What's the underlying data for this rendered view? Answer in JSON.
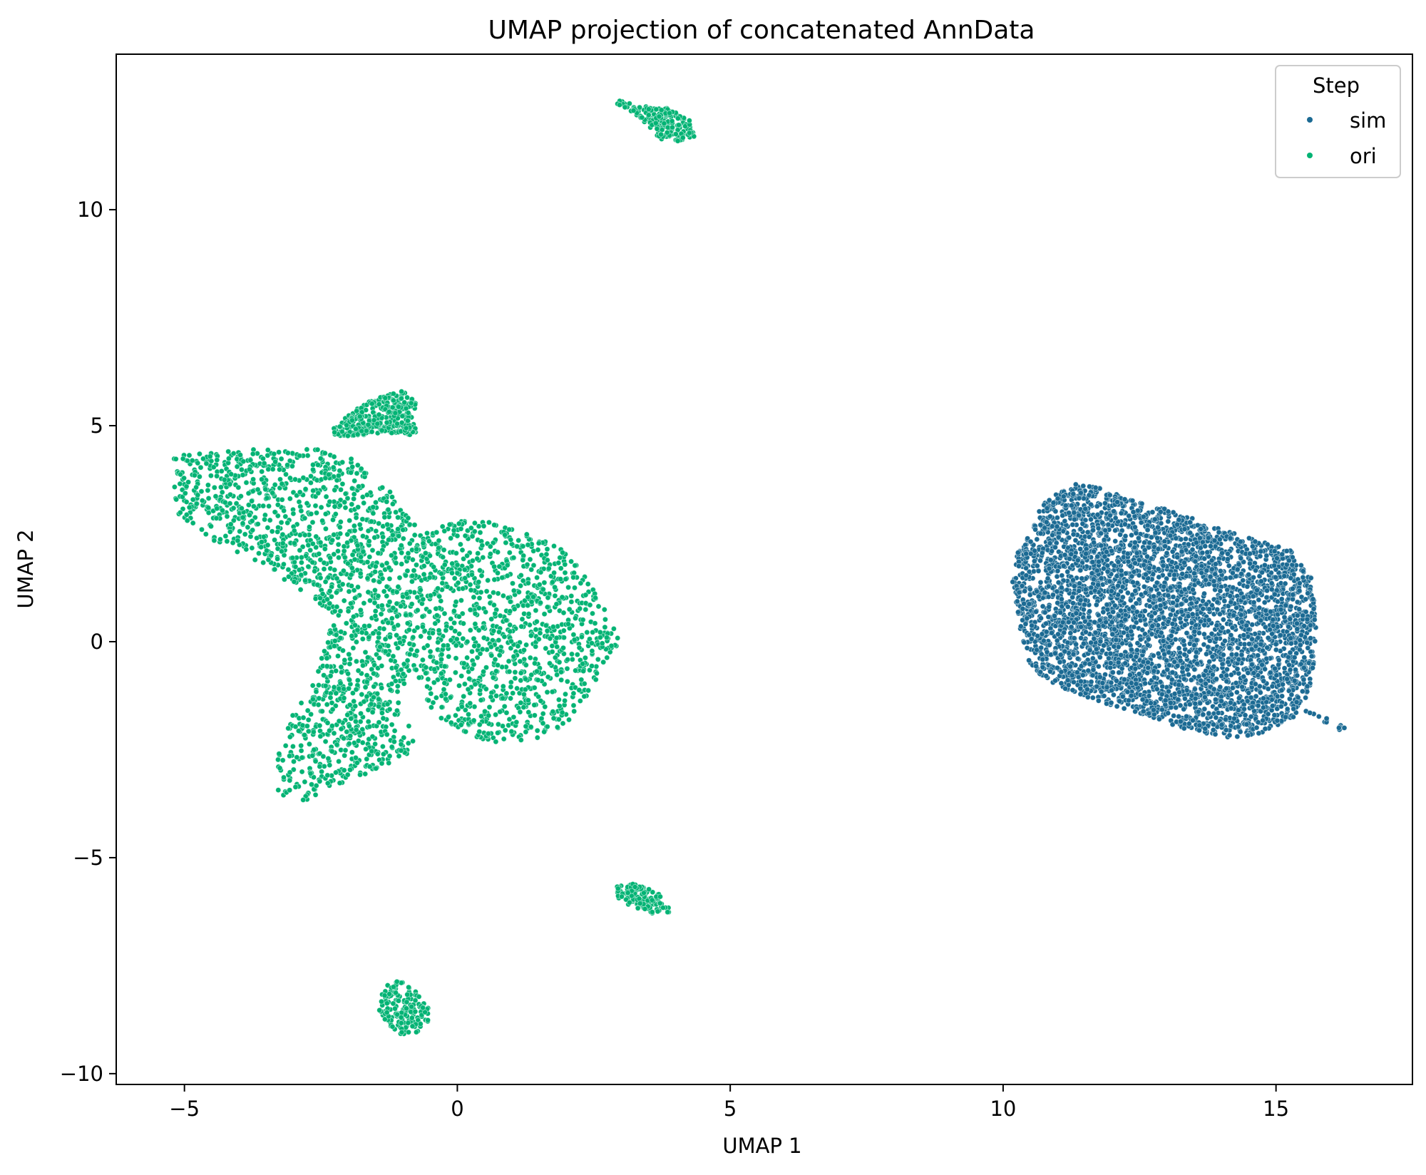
{
  "chart_data": {
    "type": "scatter",
    "title": "UMAP projection of concatenated AnnData",
    "xlabel": "UMAP 1",
    "ylabel": "UMAP 2",
    "xlim": [
      -6.25,
      17.5
    ],
    "ylim": [
      -10.25,
      13.6
    ],
    "xticks": [
      -5,
      0,
      5,
      10,
      15
    ],
    "yticks": [
      -10,
      -5,
      0,
      5,
      10
    ],
    "xtick_labels": [
      "−5",
      "0",
      "5",
      "10",
      "15"
    ],
    "ytick_labels": [
      "−10",
      "−5",
      "0",
      "5",
      "10"
    ],
    "grid": false,
    "legend": {
      "title": "Step",
      "placement": "top-right"
    },
    "series": [
      {
        "name": "sim",
        "color": "#1b6a93",
        "clusters": [
          {
            "polygon": [
              [
                10.2,
                1.9
              ],
              [
                10.5,
                2.6
              ],
              [
                10.75,
                3.25
              ],
              [
                11.3,
                3.65
              ],
              [
                11.8,
                3.55
              ],
              [
                12.4,
                3.25
              ],
              [
                13.2,
                3.0
              ],
              [
                14.0,
                2.6
              ],
              [
                14.8,
                2.3
              ],
              [
                15.4,
                2.05
              ],
              [
                15.65,
                1.5
              ],
              [
                15.75,
                0.3
              ],
              [
                15.65,
                -1.0
              ],
              [
                15.4,
                -1.7
              ],
              [
                14.9,
                -2.05
              ],
              [
                14.3,
                -2.25
              ],
              [
                13.5,
                -2.1
              ],
              [
                12.7,
                -1.75
              ],
              [
                11.8,
                -1.4
              ],
              [
                11.0,
                -1.05
              ],
              [
                10.5,
                -0.6
              ],
              [
                10.3,
                0.3
              ],
              [
                10.15,
                1.2
              ]
            ],
            "n": 4200
          },
          {
            "polygon": [
              [
                15.55,
                -1.5
              ],
              [
                16.45,
                -2.1
              ],
              [
                16.4,
                -2.2
              ],
              [
                15.5,
                -1.6
              ]
            ],
            "n": 14
          }
        ]
      },
      {
        "name": "ori",
        "color": "#03b374",
        "clusters": [
          {
            "polygon": [
              [
                -5.2,
                4.3
              ],
              [
                -4.8,
                4.45
              ],
              [
                -3.5,
                4.45
              ],
              [
                -2.4,
                4.45
              ],
              [
                -2.0,
                4.3
              ],
              [
                -1.4,
                3.7
              ],
              [
                -1.05,
                3.3
              ],
              [
                -0.9,
                2.9
              ],
              [
                -0.7,
                2.6
              ],
              [
                -0.35,
                2.65
              ],
              [
                0.0,
                2.8
              ],
              [
                0.5,
                2.8
              ],
              [
                1.3,
                2.5
              ],
              [
                1.9,
                2.2
              ],
              [
                2.3,
                1.6
              ],
              [
                2.6,
                1.0
              ],
              [
                2.85,
                0.4
              ],
              [
                3.0,
                -0.1
              ],
              [
                2.8,
                -0.5
              ],
              [
                2.5,
                -1.1
              ],
              [
                2.1,
                -1.8
              ],
              [
                1.6,
                -2.2
              ],
              [
                1.1,
                -2.4
              ],
              [
                0.5,
                -2.3
              ],
              [
                0.0,
                -2.0
              ],
              [
                -0.4,
                -1.7
              ],
              [
                -0.6,
                -1.3
              ],
              [
                -0.55,
                -0.8
              ],
              [
                -0.9,
                -0.9
              ],
              [
                -1.05,
                -1.2
              ],
              [
                -1.0,
                -1.8
              ],
              [
                -0.75,
                -2.1
              ],
              [
                -0.9,
                -2.6
              ],
              [
                -1.7,
                -3.1
              ],
              [
                -2.2,
                -3.3
              ],
              [
                -2.8,
                -3.75
              ],
              [
                -3.3,
                -3.6
              ],
              [
                -3.3,
                -2.7
              ],
              [
                -3.05,
                -1.75
              ],
              [
                -2.6,
                -0.8
              ],
              [
                -2.45,
                -0.15
              ],
              [
                -2.3,
                0.6
              ],
              [
                -2.6,
                1.0
              ],
              [
                -3.0,
                1.25
              ],
              [
                -3.5,
                1.7
              ],
              [
                -4.1,
                2.1
              ],
              [
                -4.7,
                2.4
              ],
              [
                -5.15,
                3.0
              ],
              [
                -5.2,
                3.7
              ]
            ],
            "n": 5600
          },
          {
            "polygon": [
              [
                -2.3,
                4.9
              ],
              [
                -1.9,
                5.35
              ],
              [
                -1.5,
                5.65
              ],
              [
                -1.0,
                5.8
              ],
              [
                -0.75,
                5.6
              ],
              [
                -0.8,
                5.25
              ],
              [
                -0.75,
                4.75
              ],
              [
                -1.3,
                4.85
              ],
              [
                -1.9,
                4.75
              ],
              [
                -2.2,
                4.7
              ]
            ],
            "n": 320
          },
          {
            "polygon": [
              [
                2.9,
                12.55
              ],
              [
                3.4,
                12.4
              ],
              [
                3.9,
                12.35
              ],
              [
                4.3,
                12.05
              ],
              [
                4.35,
                11.7
              ],
              [
                3.95,
                11.55
              ],
              [
                3.7,
                11.65
              ],
              [
                3.5,
                11.95
              ],
              [
                3.2,
                12.25
              ],
              [
                2.95,
                12.4
              ]
            ],
            "n": 200
          },
          {
            "polygon": [
              [
                2.9,
                -5.65
              ],
              [
                3.3,
                -5.6
              ],
              [
                3.7,
                -5.85
              ],
              [
                3.95,
                -6.25
              ],
              [
                3.6,
                -6.3
              ],
              [
                3.2,
                -6.15
              ],
              [
                2.95,
                -5.95
              ]
            ],
            "n": 130
          },
          {
            "polygon": [
              [
                -1.35,
                -8.0
              ],
              [
                -1.05,
                -7.8
              ],
              [
                -0.65,
                -8.15
              ],
              [
                -0.45,
                -8.7
              ],
              [
                -0.75,
                -9.05
              ],
              [
                -1.05,
                -9.1
              ],
              [
                -1.4,
                -8.85
              ],
              [
                -1.45,
                -8.45
              ]
            ],
            "n": 160
          }
        ]
      }
    ]
  }
}
